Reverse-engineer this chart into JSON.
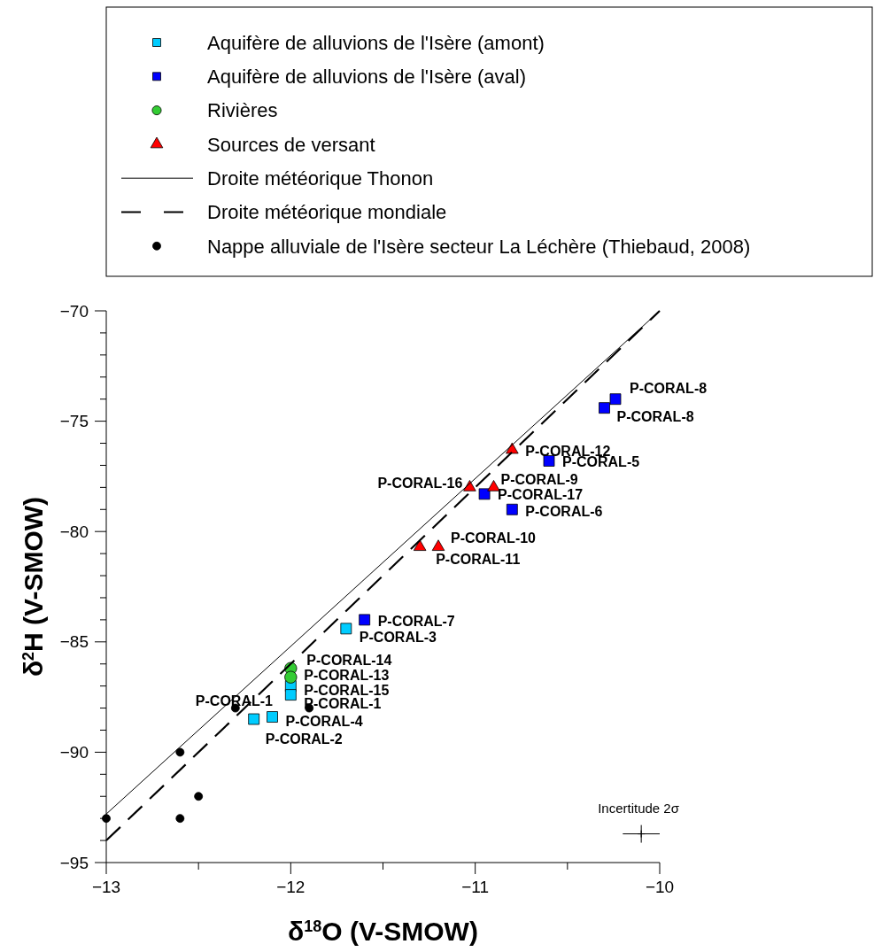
{
  "chart_data": {
    "type": "scatter",
    "xlabel": "δ$^{18}$O (V-SMOW)",
    "ylabel": "δ$^{2}$H (V-SMOW)",
    "xlim": [
      -13,
      -10
    ],
    "xticks": [
      -13,
      {
        "value": -12.5,
        "label": null
      },
      -12,
      {
        "value": -11.5,
        "label": null
      },
      -11,
      {
        "value": -10.5,
        "label": null
      },
      -10
    ],
    "ylim": [
      -95,
      -70
    ],
    "yticks": [
      -95,
      {
        "value": -94,
        "label": null
      },
      {
        "value": -93,
        "label": null
      },
      {
        "value": -92,
        "label": null
      },
      {
        "value": -91,
        "label": null
      },
      -90,
      {
        "value": -89,
        "label": null
      },
      {
        "value": -88,
        "label": null
      },
      {
        "value": -87,
        "label": null
      },
      {
        "value": -86,
        "label": null
      },
      -85,
      {
        "value": -84,
        "label": null
      },
      {
        "value": -83,
        "label": null
      },
      {
        "value": -82,
        "label": null
      },
      {
        "value": -81,
        "label": null
      },
      -80,
      {
        "value": -79,
        "label": null
      },
      {
        "value": -78,
        "label": null
      },
      {
        "value": -77,
        "label": null
      },
      {
        "value": -76,
        "label": null
      },
      -75,
      {
        "value": -74,
        "label": null
      },
      {
        "value": -73,
        "label": null
      },
      {
        "value": -72,
        "label": null
      },
      {
        "value": -71,
        "label": null
      },
      -70
    ],
    "grid": false,
    "legend": "top",
    "series": [
      {
        "name": "Aquifère de alluvions de l'Isère (amont)",
        "color": "#00ccff",
        "marker": "square",
        "x": [
          -11.7,
          -12.0,
          -12.0,
          -12.1,
          -12.2
        ],
        "values": [
          -84.4,
          -87.0,
          -87.4,
          -88.4,
          -88.5
        ]
      },
      {
        "name": "Aquifère de alluvions de l'Isère (aval)",
        "color": "#0000ff",
        "marker": "square",
        "x": [
          -10.24,
          -10.3,
          -10.6,
          -10.95,
          -10.8,
          -11.6
        ],
        "values": [
          -74.0,
          -74.4,
          -76.8,
          -78.3,
          -79.0,
          -84.0
        ]
      },
      {
        "name": "Rivières",
        "color": "#33cc33",
        "marker": "circle",
        "x": [
          -12.0,
          -12.0
        ],
        "values": [
          -86.2,
          -86.6
        ]
      },
      {
        "name": "Sources de versant",
        "color": "#ff0000",
        "marker": "triangle",
        "x": [
          -10.8,
          -11.03,
          -10.9,
          -11.3,
          -11.2
        ],
        "values": [
          -76.3,
          -78.0,
          -78.0,
          -80.7,
          -80.7
        ]
      },
      {
        "name": "Droite météorique Thonon",
        "type": "line",
        "color": "#000000",
        "marker": "none",
        "line_style": "solid",
        "x": [
          -13,
          -10
        ],
        "values": [
          -92.8,
          -70
        ]
      },
      {
        "name": "Droite météorique mondiale",
        "type": "line",
        "color": "#000000",
        "marker": "none",
        "line_style": "dashed",
        "x": [
          -13,
          -10
        ],
        "values": [
          -94,
          -70
        ]
      },
      {
        "name": "Nappe alluviale de l'Isère secteur La Léchère (Thiebaud, 2008)",
        "color": "#000000",
        "marker": "circle",
        "x": [
          -12.3,
          -11.9,
          -12.6,
          -12.5,
          -12.6,
          -13.0
        ],
        "values": [
          -88,
          -88,
          -90,
          -92,
          -93,
          -93
        ]
      },
      {
        "color": "#000000",
        "marker": "cross",
        "x": [
          -10.1
        ],
        "values": [
          -93.7
        ],
        "xerrors": [
          0.1
        ],
        "errors": [
          0.4
        ]
      }
    ],
    "annotations": [
      {
        "text": "P-CORAL-8",
        "x": -10.24,
        "y": -74.0
      },
      {
        "text": "P-CORAL-8",
        "x": -10.3,
        "y": -74.4
      },
      {
        "text": "P-CORAL-12",
        "x": -10.8,
        "y": -76.3
      },
      {
        "text": "P-CORAL-5",
        "x": -10.6,
        "y": -76.8
      },
      {
        "text": "P-CORAL-16",
        "x": -11.03,
        "y": -78.0
      },
      {
        "text": "P-CORAL-9",
        "x": -10.9,
        "y": -78.0
      },
      {
        "text": "P-CORAL-17",
        "x": -10.95,
        "y": -78.3
      },
      {
        "text": "P-CORAL-6",
        "x": -10.8,
        "y": -79.0
      },
      {
        "text": "P-CORAL-10",
        "x": -11.2,
        "y": -80.7
      },
      {
        "text": "P-CORAL-11",
        "x": -11.3,
        "y": -80.7
      },
      {
        "text": "P-CORAL-7",
        "x": -11.6,
        "y": -84.0
      },
      {
        "text": "P-CORAL-3",
        "x": -11.7,
        "y": -84.4
      },
      {
        "text": "P-CORAL-14",
        "x": -12.0,
        "y": -86.2
      },
      {
        "text": "P-CORAL-13",
        "x": -12.0,
        "y": -86.6
      },
      {
        "text": "P-CORAL-15",
        "x": -12.0,
        "y": -87.0
      },
      {
        "text": "P-CORAL-1",
        "x": -12.0,
        "y": -87.4
      },
      {
        "text": "P-CORAL-1",
        "x": -12.3,
        "y": -88
      },
      {
        "text": "P-CORAL-4",
        "x": -12.1,
        "y": -88.4
      },
      {
        "text": "P-CORAL-2",
        "x": -12.2,
        "y": -88.5
      },
      {
        "text": "Incertitude 2σ",
        "x": -10.1,
        "y": -93.7
      }
    ]
  }
}
